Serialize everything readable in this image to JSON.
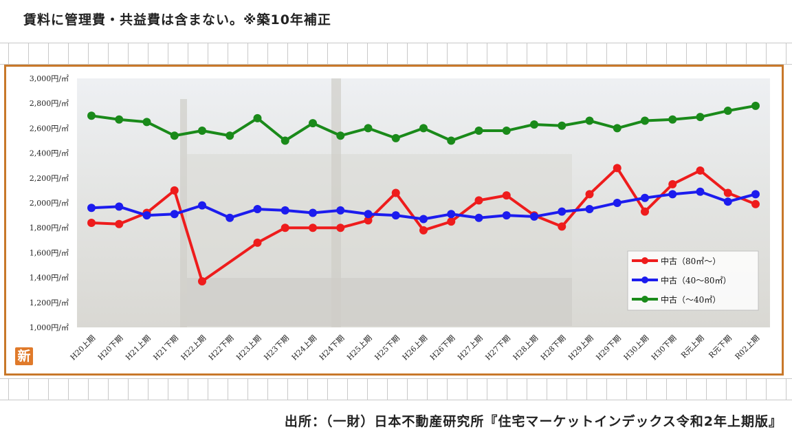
{
  "header": {
    "title": "賃料に管理費・共益費は含まない。※築10年補正"
  },
  "footer": {
    "source": "出所：（一財）日本不動産研究所『住宅マーケットインデックス令和2年上期版』"
  },
  "logo": {
    "text": "新",
    "color": "#e07a2a"
  },
  "chart_data": {
    "type": "line",
    "title": "",
    "xlabel": "",
    "ylabel": "",
    "ylim": [
      1000,
      3000
    ],
    "yticks": [
      1000,
      1200,
      1400,
      1600,
      1800,
      2000,
      2200,
      2400,
      2600,
      2800,
      3000
    ],
    "ytick_labels": [
      "1,000円/㎡",
      "1,200円/㎡",
      "1,400円/㎡",
      "1,600円/㎡",
      "1,800円/㎡",
      "2,000円/㎡",
      "2,200円/㎡",
      "2,400円/㎡",
      "2,600円/㎡",
      "2,800円/㎡",
      "3,000円/㎡"
    ],
    "categories": [
      "H20上期",
      "H20下期",
      "H21上期",
      "H21下期",
      "H22上期",
      "H22下期",
      "H23上期",
      "H23下期",
      "H24上期",
      "H24下期",
      "H25上期",
      "H25下期",
      "H26上期",
      "H26下期",
      "H27上期",
      "H27下期",
      "H28上期",
      "H28下期",
      "H29上期",
      "H29下期",
      "H30上期",
      "H30下期",
      "R元上期",
      "R元下期",
      "R02上期"
    ],
    "grid": false,
    "legend_position": "bottom-right",
    "series": [
      {
        "name": "中古（80㎡～）",
        "color": "#ee1c1c",
        "values": [
          1840,
          1830,
          1920,
          2100,
          1370,
          null,
          1680,
          1800,
          1800,
          1800,
          1860,
          2080,
          1780,
          1850,
          2020,
          2060,
          1900,
          1810,
          2070,
          2280,
          1930,
          2150,
          2260,
          2080,
          1990
        ]
      },
      {
        "name": "中古（40～80㎡）",
        "color": "#1c1cee",
        "values": [
          1960,
          1970,
          1900,
          1910,
          1980,
          1880,
          1950,
          1940,
          1920,
          1940,
          1910,
          1900,
          1870,
          1910,
          1880,
          1900,
          1890,
          1930,
          1950,
          2000,
          2040,
          2070,
          2090,
          2010,
          2070
        ]
      },
      {
        "name": "中古（～40㎡）",
        "color": "#1a8a1a",
        "values": [
          2700,
          2670,
          2650,
          2540,
          2580,
          2540,
          2680,
          2500,
          2640,
          2540,
          2600,
          2520,
          2600,
          2500,
          2580,
          2580,
          2630,
          2620,
          2660,
          2600,
          2660,
          2670,
          2690,
          2740,
          2780
        ]
      }
    ]
  }
}
